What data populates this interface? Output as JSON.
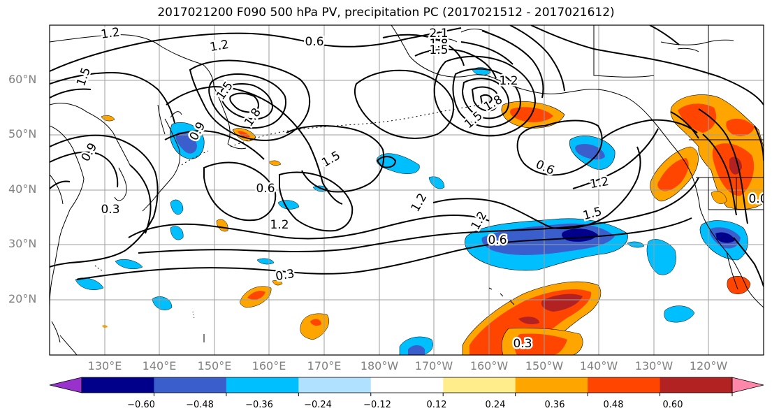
{
  "title": "2017021200 F090 500 hPa PV, precipitation PC (2017021512 - 2017021612)",
  "latitude_labels": [
    "60°N",
    "50°N",
    "40°N",
    "30°N",
    "20°N"
  ],
  "longitude_labels": [
    "130°E",
    "140°E",
    "150°E",
    "160°E",
    "170°E",
    "180°W",
    "170°W",
    "160°W",
    "150°W",
    "140°W",
    "130°W",
    "120°W"
  ],
  "contour_labels": [
    "1.2",
    "1.2",
    "0.6",
    "2.1",
    "1.8",
    "1.5",
    "1.5",
    "1.5",
    "1.8",
    "0.9",
    "0.9",
    "1.5",
    "0.6",
    "0.6",
    "1.2",
    "1.2",
    "1.5",
    "1.2",
    "0.6",
    "0.3",
    "1.2",
    "0.3",
    "0.3",
    "0.6",
    "1.8",
    "1.5",
    "1.2",
    "0.0"
  ],
  "colorbar": {
    "ticks": [
      "−0.60",
      "−0.48",
      "−0.36",
      "−0.24",
      "−0.12",
      "0.12",
      "0.24",
      "0.36",
      "0.48",
      "0.60"
    ],
    "colors": [
      "#9932cc",
      "#00008b",
      "#3a5fcd",
      "#00bfff",
      "#b0e2ff",
      "#ffffff",
      "#ffec8b",
      "#ffa500",
      "#ff4500",
      "#b22222",
      "#ff88aa"
    ]
  },
  "colors": {
    "land_outline": "#000000",
    "grid": "#9e9e9e",
    "contour": "#000000",
    "axis_label": "#808080"
  }
}
